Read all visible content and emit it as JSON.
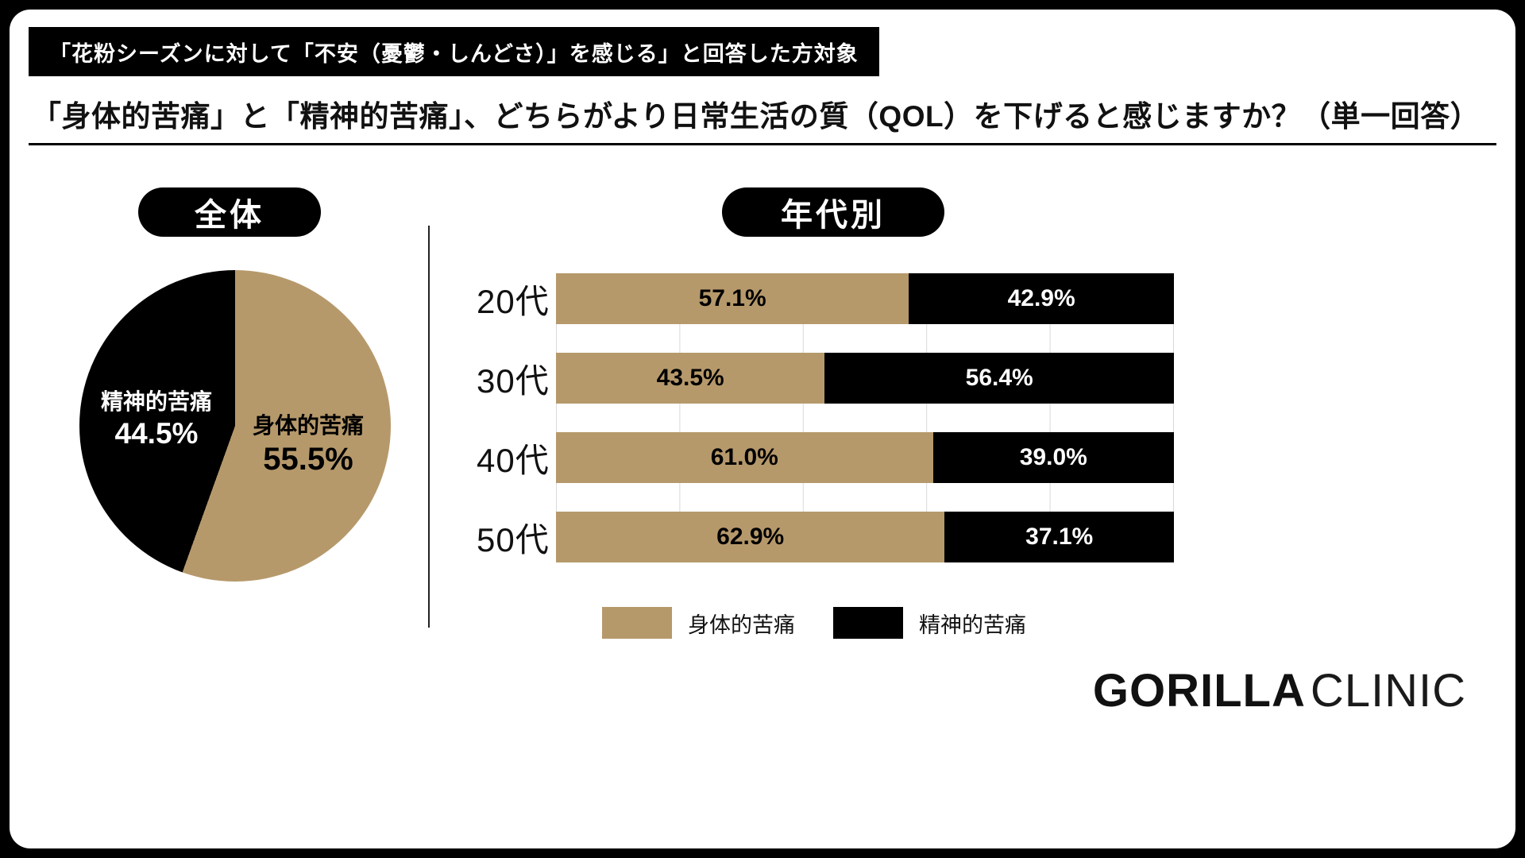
{
  "banner": {
    "text": "「花粉シーズンに対して「不安（憂鬱・しんどさ）」を感じる」と回答した方対象"
  },
  "title": "「身体的苦痛」と「精神的苦痛」、どちらがより日常生活の質（QOL）を下げると感じますか？（単一回答）",
  "colors": {
    "tan": "#b6996b",
    "black": "#000000"
  },
  "overall": {
    "badge": "全体"
  },
  "by_age": {
    "badge": "年代別"
  },
  "pie": {
    "slice1_label": "身体的苦痛",
    "slice1_pct": "55.5%",
    "slice1_value": 55.5,
    "slice2_label": "精神的苦痛",
    "slice2_pct": "44.5%",
    "slice2_value": 44.5
  },
  "bars": {
    "rows": [
      {
        "label": "20代",
        "tan_pct": "57.1%",
        "black_pct": "42.9%",
        "tan_val": 57.1,
        "black_val": 42.9
      },
      {
        "label": "30代",
        "tan_pct": "43.5%",
        "black_pct": "56.4%",
        "tan_val": 43.5,
        "black_val": 56.4
      },
      {
        "label": "40代",
        "tan_pct": "61.0%",
        "black_pct": "39.0%",
        "tan_val": 61.0,
        "black_val": 39.0
      },
      {
        "label": "50代",
        "tan_pct": "62.9%",
        "black_pct": "37.1%",
        "tan_val": 62.9,
        "black_val": 37.1
      }
    ]
  },
  "legend": [
    {
      "label": "身体的苦痛",
      "color": "#b6996b"
    },
    {
      "label": "精神的苦痛",
      "color": "#000000"
    }
  ],
  "logo": {
    "part1": "GORILLA",
    "part2": "CLINIC"
  },
  "chart_data": [
    {
      "type": "pie",
      "title": "全体",
      "labels": [
        "身体的苦痛",
        "精神的苦痛"
      ],
      "values": [
        55.5,
        44.5
      ],
      "colors": [
        "#b6996b",
        "#000000"
      ],
      "start_angle_deg": 0,
      "direction": "clockwise"
    },
    {
      "type": "bar",
      "subtype": "horizontal-stacked",
      "title": "年代別",
      "categories": [
        "20代",
        "30代",
        "40代",
        "50代"
      ],
      "series": [
        {
          "name": "身体的苦痛",
          "values": [
            57.1,
            43.5,
            61.0,
            62.9
          ],
          "color": "#b6996b"
        },
        {
          "name": "精神的苦痛",
          "values": [
            42.9,
            56.4,
            39.0,
            37.1
          ],
          "color": "#000000"
        }
      ],
      "xlim": [
        0,
        100
      ],
      "grid": true,
      "grid_step_pct": 20,
      "legend_position": "bottom"
    }
  ]
}
